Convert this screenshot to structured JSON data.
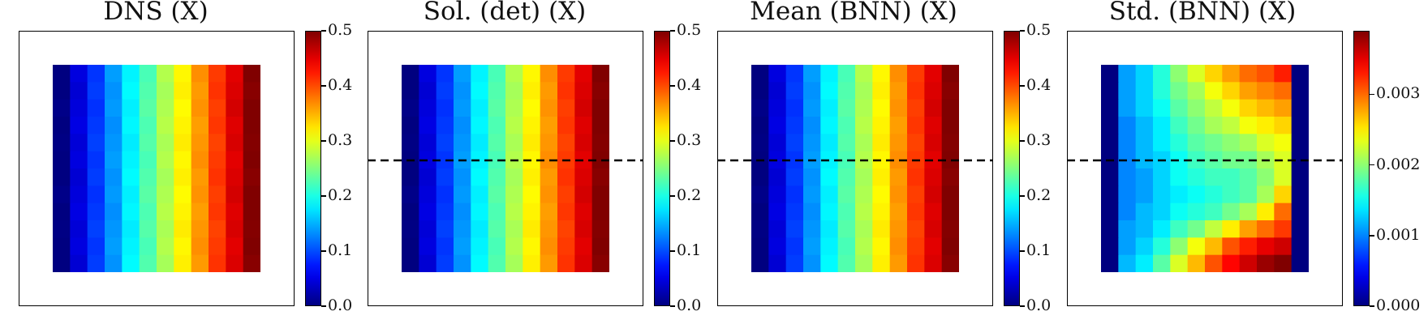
{
  "chart_data": [
    {
      "type": "heatmap",
      "title": "DNS (X)",
      "colormap": "jet",
      "dashed_line": false,
      "grid_size": [
        12,
        12
      ],
      "colorbar": {
        "min": 0.0,
        "max": 0.5,
        "ticks": [
          0.0,
          0.1,
          0.2,
          0.3,
          0.4,
          0.5
        ],
        "tick_labels": [
          "0.0",
          "0.1",
          "0.2",
          "0.3",
          "0.4",
          "0.5"
        ]
      },
      "column_values": [
        0.0,
        0.045,
        0.09,
        0.136,
        0.182,
        0.227,
        0.273,
        0.318,
        0.364,
        0.409,
        0.455,
        0.5
      ]
    },
    {
      "type": "heatmap",
      "title": "Sol. (det) (X)",
      "colormap": "jet",
      "dashed_line": true,
      "grid_size": [
        12,
        12
      ],
      "colorbar": {
        "min": 0.0,
        "max": 0.5,
        "ticks": [
          0.0,
          0.1,
          0.2,
          0.3,
          0.4,
          0.5
        ],
        "tick_labels": [
          "0.0",
          "0.1",
          "0.2",
          "0.3",
          "0.4",
          "0.5"
        ]
      },
      "column_values": [
        0.0,
        0.045,
        0.09,
        0.136,
        0.182,
        0.227,
        0.273,
        0.318,
        0.364,
        0.409,
        0.455,
        0.5
      ]
    },
    {
      "type": "heatmap",
      "title": "Mean (BNN) (X)",
      "colormap": "jet",
      "dashed_line": true,
      "grid_size": [
        12,
        12
      ],
      "colorbar": {
        "min": 0.0,
        "max": 0.5,
        "ticks": [
          0.0,
          0.1,
          0.2,
          0.3,
          0.4,
          0.5
        ],
        "tick_labels": [
          "0.0",
          "0.1",
          "0.2",
          "0.3",
          "0.4",
          "0.5"
        ]
      },
      "column_values": [
        0.0,
        0.045,
        0.09,
        0.136,
        0.182,
        0.227,
        0.273,
        0.318,
        0.364,
        0.409,
        0.455,
        0.5
      ]
    },
    {
      "type": "heatmap",
      "title": "Std. (BNN) (X)",
      "colormap": "jet",
      "dashed_line": true,
      "grid_size": [
        12,
        12
      ],
      "colorbar": {
        "min": 0.0,
        "max": 0.0039,
        "ticks": [
          0.0,
          0.001,
          0.002,
          0.003
        ],
        "tick_labels": [
          "0.000",
          "0.001",
          "0.002",
          "0.003"
        ]
      },
      "values": [
        [
          0,
          0.0011,
          0.0013,
          0.0016,
          0.002,
          0.0023,
          0.0026,
          0.0028,
          0.003,
          0.0031,
          0.0033,
          0
        ],
        [
          0,
          0.0011,
          0.0013,
          0.0016,
          0.0019,
          0.0021,
          0.0024,
          0.0026,
          0.0028,
          0.0029,
          0.003,
          0
        ],
        [
          0,
          0.0011,
          0.0013,
          0.0015,
          0.0018,
          0.002,
          0.0022,
          0.0024,
          0.0026,
          0.0027,
          0.0028,
          0
        ],
        [
          0,
          0.001,
          0.0012,
          0.0014,
          0.0017,
          0.0019,
          0.0021,
          0.0022,
          0.0024,
          0.0025,
          0.0026,
          0
        ],
        [
          0,
          0.001,
          0.0012,
          0.0014,
          0.0016,
          0.0018,
          0.0019,
          0.002,
          0.0021,
          0.0023,
          0.0024,
          0
        ],
        [
          0,
          0.001,
          0.0012,
          0.0013,
          0.0015,
          0.0017,
          0.0018,
          0.0019,
          0.0019,
          0.0021,
          0.0023,
          0
        ],
        [
          0,
          0.001,
          0.0011,
          0.0013,
          0.0015,
          0.0016,
          0.0017,
          0.0017,
          0.0018,
          0.002,
          0.0023,
          0
        ],
        [
          0,
          0.001,
          0.0011,
          0.0013,
          0.0014,
          0.0015,
          0.0016,
          0.0017,
          0.0018,
          0.0021,
          0.0026,
          0
        ],
        [
          0,
          0.001,
          0.0012,
          0.0013,
          0.0015,
          0.0016,
          0.0017,
          0.0019,
          0.0021,
          0.0025,
          0.003,
          0
        ],
        [
          0,
          0.0011,
          0.0012,
          0.0014,
          0.0017,
          0.0019,
          0.0022,
          0.0025,
          0.0028,
          0.003,
          0.0032,
          0
        ],
        [
          0,
          0.0011,
          0.0013,
          0.0016,
          0.002,
          0.0024,
          0.0027,
          0.0031,
          0.0033,
          0.0035,
          0.0036,
          0
        ],
        [
          0,
          0.0012,
          0.0014,
          0.0018,
          0.0023,
          0.0027,
          0.0031,
          0.0034,
          0.0036,
          0.0038,
          0.0039,
          0
        ]
      ]
    }
  ]
}
